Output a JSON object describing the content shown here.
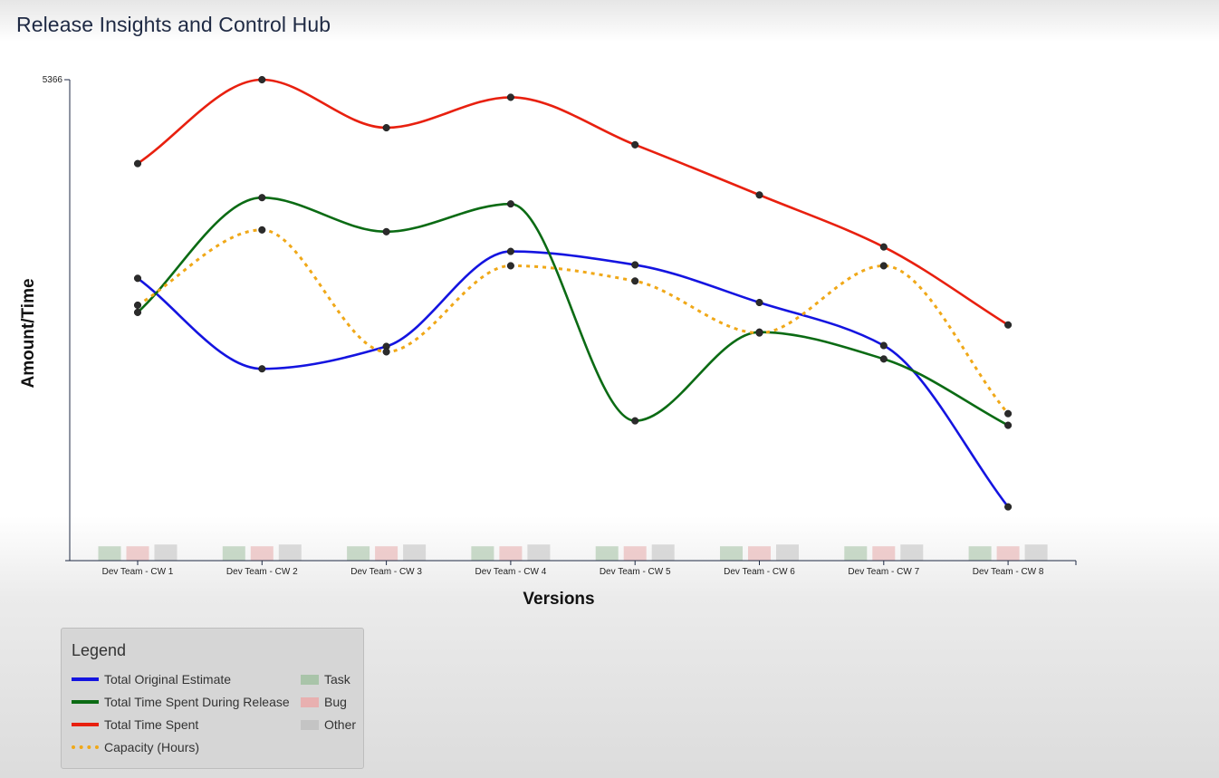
{
  "app": {
    "title": "Release Insights and Control Hub"
  },
  "legend": {
    "title": "Legend",
    "line_items": [
      {
        "label": "Total Original Estimate",
        "color": "#1414e0",
        "style": "solid"
      },
      {
        "label": "Total Time Spent During Release",
        "color": "#0b6b14",
        "style": "solid"
      },
      {
        "label": "Total Time Spent",
        "color": "#e8200f",
        "style": "solid"
      },
      {
        "label": "Capacity (Hours)",
        "color": "#f0a818",
        "style": "dotted"
      }
    ],
    "bar_items": [
      {
        "label": "Task",
        "color": "#a9c4a9"
      },
      {
        "label": "Bug",
        "color": "#e8b0b0"
      },
      {
        "label": "Other",
        "color": "#c4c4c4"
      }
    ]
  },
  "chart_data": {
    "type": "line",
    "xlabel": "Versions",
    "ylabel": "Amount/Time",
    "ylim": [
      0,
      5366
    ],
    "y_ticks": [
      "5366"
    ],
    "categories": [
      "Dev Team - CW 1",
      "Dev Team - CW 2",
      "Dev Team - CW 3",
      "Dev Team - CW 4",
      "Dev Team - CW 5",
      "Dev Team - CW 6",
      "Dev Team - CW 7",
      "Dev Team - CW 8"
    ],
    "series": [
      {
        "name": "Total Original Estimate",
        "color": "#1414e0",
        "style": "solid",
        "values": [
          3150,
          2140,
          2390,
          3450,
          3300,
          2880,
          2400,
          600
        ]
      },
      {
        "name": "Total Time Spent During Release",
        "color": "#0b6b14",
        "style": "solid",
        "values": [
          2770,
          4050,
          3670,
          3980,
          1560,
          2550,
          2250,
          1510
        ]
      },
      {
        "name": "Total Time Spent",
        "color": "#e8200f",
        "style": "solid",
        "values": [
          4430,
          5366,
          4830,
          5170,
          4640,
          4080,
          3500,
          2630
        ]
      },
      {
        "name": "Capacity (Hours)",
        "color": "#f0a818",
        "style": "dotted",
        "values": [
          2850,
          3690,
          2330,
          3290,
          3120,
          2540,
          3290,
          1640
        ]
      }
    ],
    "bars": {
      "series": [
        {
          "name": "Task",
          "color": "#a9c4a9",
          "values": [
            160,
            160,
            160,
            160,
            160,
            160,
            160,
            160
          ]
        },
        {
          "name": "Bug",
          "color": "#e8b0b0",
          "values": [
            160,
            160,
            160,
            160,
            160,
            160,
            160,
            160
          ]
        },
        {
          "name": "Other",
          "color": "#c4c4c4",
          "values": [
            180,
            180,
            180,
            180,
            180,
            180,
            180,
            180
          ]
        }
      ]
    },
    "grid": false,
    "legend_position": "bottom-left"
  }
}
